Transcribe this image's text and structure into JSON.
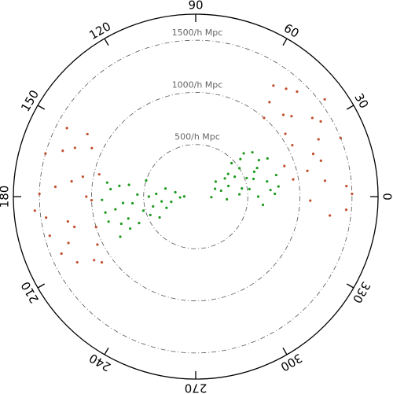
{
  "chart_data": {
    "type": "polar-scatter",
    "thetalim": [
      0,
      360
    ],
    "thetaticks": [
      0,
      30,
      60,
      90,
      120,
      150,
      180,
      210,
      240,
      270,
      300,
      330
    ],
    "rlim": [
      0,
      1750
    ],
    "rticks": [
      {
        "value": 500,
        "label": "500/h Mpc"
      },
      {
        "value": 1000,
        "label": "1000/h Mpc"
      },
      {
        "value": 1500,
        "label": "1500/h Mpc"
      }
    ],
    "series": [
      {
        "color": "#1f9a1f",
        "theta": [
          165,
          170,
          175,
          180,
          185,
          190,
          195,
          200,
          205,
          210,
          168,
          178,
          188,
          198,
          208,
          172,
          182,
          192,
          202,
          162,
          176,
          186,
          196,
          206,
          183,
          193,
          171,
          201,
          189,
          179
        ],
        "r": [
          300,
          650,
          820,
          450,
          700,
          880,
          520,
          760,
          600,
          400,
          200,
          560,
          330,
          680,
          820,
          740,
          900,
          240,
          470,
          500,
          380,
          610,
          870,
          700,
          150,
          420,
          860,
          300,
          780,
          110
        ]
      },
      {
        "color": "#1f9a1f",
        "theta": [
          -5,
          0,
          5,
          10,
          15,
          20,
          25,
          30,
          35,
          40,
          -2,
          8,
          18,
          28,
          38,
          3,
          13,
          23,
          33,
          43,
          12,
          22,
          32,
          2,
          17,
          27,
          7,
          37,
          -7,
          42
        ],
        "r": [
          300,
          600,
          720,
          450,
          800,
          520,
          650,
          700,
          380,
          560,
          150,
          520,
          330,
          780,
          690,
          420,
          250,
          610,
          500,
          470,
          700,
          200,
          330,
          760,
          580,
          420,
          800,
          240,
          650,
          620
        ]
      },
      {
        "color": "#c0502f",
        "theta": [
          152,
          158,
          164,
          170,
          176,
          182,
          188,
          194,
          200,
          206,
          212,
          155,
          167,
          179,
          191,
          203,
          161,
          173,
          185,
          197,
          209,
          150,
          215,
          180,
          195
        ],
        "r": [
          1400,
          1250,
          1500,
          1100,
          1350,
          1000,
          1450,
          1200,
          1300,
          1050,
          1150,
          1100,
          950,
          1500,
          1250,
          1400,
          1350,
          1200,
          1550,
          1000,
          1300,
          1200,
          1100,
          1050,
          1450
        ]
      },
      {
        "color": "#c0502f",
        "theta": [
          -8,
          -2,
          4,
          10,
          16,
          22,
          28,
          34,
          40,
          46,
          52,
          1,
          13,
          25,
          37,
          49,
          7,
          19,
          31,
          43,
          55,
          -5,
          20,
          35,
          50
        ],
        "r": [
          1300,
          1100,
          1450,
          950,
          1250,
          1500,
          1050,
          1350,
          1200,
          1400,
          1150,
          1500,
          1100,
          1300,
          1550,
          1000,
          1250,
          900,
          1400,
          1150,
          1300,
          1450,
          1200,
          1050,
          1350
        ]
      }
    ]
  }
}
